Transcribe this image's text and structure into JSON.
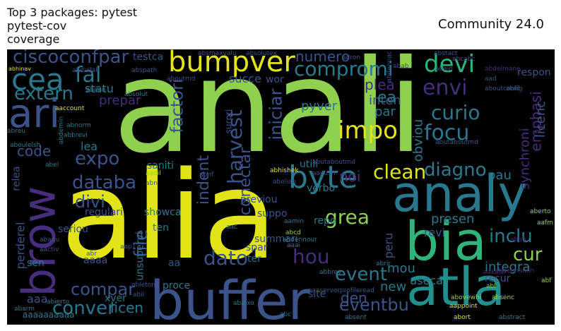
{
  "title_left": "Top 3 packages: pytest\npytest-cov\ncoverage",
  "title_right": "Community 24.0",
  "cloud": {
    "background": "#000000",
    "palette": {
      "lime": "#8fd14f",
      "yellow": "#e2e418",
      "teal": "#21908d",
      "blue": "#3b528b",
      "purple": "#472d7b",
      "green": "#2fb47c",
      "cyan": "#2a788e",
      "dark": "#440154"
    },
    "words": [
      {
        "text": "anali",
        "color": "#8fd14f"
      },
      {
        "text": "alia",
        "color": "#e2e418"
      },
      {
        "text": "buffer",
        "color": "#3b528b"
      },
      {
        "text": "brow",
        "color": "#472d7b"
      },
      {
        "text": "analy",
        "color": "#2a788e"
      },
      {
        "text": "bia",
        "color": "#2fb47c"
      },
      {
        "text": "atla",
        "color": "#21908d"
      },
      {
        "text": "bumpver",
        "color": "#e2e418"
      },
      {
        "text": "ari",
        "color": "#3b528b"
      },
      {
        "text": "cea",
        "color": "#2a788e"
      },
      {
        "text": "ciscoconfpar",
        "color": "#3b528b"
      },
      {
        "text": "byte",
        "color": "#2a788e"
      },
      {
        "text": "compromi",
        "color": "#2a788e"
      },
      {
        "text": "devi",
        "color": "#2fb47c"
      },
      {
        "text": "fal",
        "color": "#2a788e"
      },
      {
        "text": "extern",
        "color": "#2a788e"
      },
      {
        "text": "envi",
        "color": "#472d7b"
      },
      {
        "text": "curio",
        "color": "#2a788e"
      },
      {
        "text": "focu",
        "color": "#2a788e"
      },
      {
        "text": "impo",
        "color": "#e2e418"
      },
      {
        "text": "factori",
        "color": "#3b528b"
      },
      {
        "text": "harvest",
        "color": "#3b528b"
      },
      {
        "text": "iniciar",
        "color": "#3b528b"
      },
      {
        "text": "clean",
        "color": "#e2e418"
      },
      {
        "text": "diagno",
        "color": "#2a788e"
      },
      {
        "text": "databa",
        "color": "#3b528b"
      },
      {
        "text": "expo",
        "color": "#3b528b"
      },
      {
        "text": "code",
        "color": "#3b528b"
      },
      {
        "text": "divi",
        "color": "#3b528b"
      },
      {
        "text": "indent",
        "color": "#3b528b"
      },
      {
        "text": "conectar",
        "color": "#3b528b"
      },
      {
        "text": "grea",
        "color": "#8fd14f"
      },
      {
        "text": "dato",
        "color": "#3b528b"
      },
      {
        "text": "hou",
        "color": "#472d7b"
      },
      {
        "text": "file",
        "color": "#3b528b"
      },
      {
        "text": "compar",
        "color": "#3b528b"
      },
      {
        "text": "conver",
        "color": "#2a788e"
      },
      {
        "text": "licen",
        "color": "#2a788e"
      },
      {
        "text": "event",
        "color": "#2a788e"
      },
      {
        "text": "eventbu",
        "color": "#3b528b"
      },
      {
        "text": "inclu",
        "color": "#2a788e"
      },
      {
        "text": "cur",
        "color": "#8fd14f"
      },
      {
        "text": "integra",
        "color": "#2a788e"
      },
      {
        "text": "den",
        "color": "#3b528b"
      },
      {
        "text": "new",
        "color": "#2a788e"
      },
      {
        "text": "mou",
        "color": "#2a788e"
      },
      {
        "text": "presen",
        "color": "#2a788e"
      },
      {
        "text": "revi",
        "color": "#3b528b"
      },
      {
        "text": "pau",
        "color": "#2a788e"
      },
      {
        "text": "noi",
        "color": "#472d7b"
      },
      {
        "text": "emphasi",
        "color": "#472d7b"
      },
      {
        "text": "synchroni",
        "color": "#472d7b"
      },
      {
        "text": "licenc",
        "color": "#3b528b"
      },
      {
        "text": "inten",
        "color": "#3b528b"
      },
      {
        "text": "ea",
        "color": "#2a788e"
      },
      {
        "text": "plea",
        "color": "#472d7b"
      },
      {
        "text": "numero",
        "color": "#3b528b"
      },
      {
        "text": "pyver",
        "color": "#2a788e"
      },
      {
        "text": "obviou",
        "color": "#2a788e"
      },
      {
        "text": "par",
        "color": "#2a788e"
      },
      {
        "text": "prepar",
        "color": "#472d7b"
      },
      {
        "text": "statu",
        "color": "#2a788e"
      },
      {
        "text": "succe",
        "color": "#3b528b"
      },
      {
        "text": "testca",
        "color": "#3b528b"
      },
      {
        "text": "wor",
        "color": "#3b528b"
      },
      {
        "text": "respon",
        "color": "#3b528b"
      },
      {
        "text": "lea",
        "color": "#2a788e"
      },
      {
        "text": "saniti",
        "color": "#2a788e"
      },
      {
        "text": "utili",
        "color": "#2a788e"
      },
      {
        "text": "regulari",
        "color": "#3b528b"
      },
      {
        "text": "showca",
        "color": "#2a788e"
      },
      {
        "text": "verbo",
        "color": "#2a788e"
      },
      {
        "text": "previou",
        "color": "#3b528b"
      },
      {
        "text": "suppo",
        "color": "#3b528b"
      },
      {
        "text": "repo",
        "color": "#2a788e"
      },
      {
        "text": "seriou",
        "color": "#3b528b"
      },
      {
        "text": "ten",
        "color": "#2a788e"
      },
      {
        "text": "spar",
        "color": "#3b528b"
      },
      {
        "text": "ter",
        "color": "#2a788e"
      },
      {
        "text": "summari",
        "color": "#3b528b"
      },
      {
        "text": "perderel",
        "color": "#3b528b"
      },
      {
        "text": "relea",
        "color": "#3b528b"
      },
      {
        "text": "unsupervi",
        "color": "#2a788e"
      },
      {
        "text": "sen",
        "color": "#2a788e"
      },
      {
        "text": "aa",
        "color": "#3b528b"
      },
      {
        "text": "aaaa",
        "color": "#3b528b"
      },
      {
        "text": "proce",
        "color": "#2a788e"
      },
      {
        "text": "site",
        "color": "#3b528b"
      },
      {
        "text": "useca",
        "color": "#2a788e"
      },
      {
        "text": "recur",
        "color": "#3b528b"
      },
      {
        "text": "peru",
        "color": "#3b528b"
      },
      {
        "text": "xver",
        "color": "#2a788e"
      },
      {
        "text": "aaa",
        "color": "#3b528b"
      },
      {
        "text": "aaaaaaaaaa",
        "color": "#2a788e"
      },
      {
        "text": "surpri",
        "color": "#3b528b"
      },
      {
        "text": "abhinav",
        "color": "#e2e418"
      },
      {
        "text": "aaaserverprofileread",
        "color": "#3b528b"
      },
      {
        "text": "abhishek",
        "color": "#e2e418"
      },
      {
        "text": "abdennac",
        "color": "#3b528b"
      },
      {
        "text": "abcd",
        "color": "#8fd14f"
      },
      {
        "text": "abort",
        "color": "#e2e418"
      },
      {
        "text": "abstract",
        "color": "#2a788e"
      },
      {
        "text": "abovewhi",
        "color": "#8fd14f"
      },
      {
        "text": "aappoint",
        "color": "#e2e418"
      },
      {
        "text": "abl",
        "color": "#8fd14f"
      },
      {
        "text": "absenc",
        "color": "#8fd14f"
      },
      {
        "text": "abf",
        "color": "#8fd14f"
      },
      {
        "text": "aafm",
        "color": "#8fd14f"
      },
      {
        "text": "aberto",
        "color": "#8fd14f"
      },
      {
        "text": "abrir",
        "color": "#2a788e"
      },
      {
        "text": "abbrev",
        "color": "#2a788e"
      },
      {
        "text": "aaai",
        "color": "#2a788e"
      },
      {
        "text": "abc",
        "color": "#2a788e"
      },
      {
        "text": "abaixo",
        "color": "#2a788e"
      },
      {
        "text": "absent",
        "color": "#2a788e"
      },
      {
        "text": "abierto",
        "color": "#2a788e"
      },
      {
        "text": "abarm",
        "color": "#2a788e"
      },
      {
        "text": "abil",
        "color": "#3b528b"
      },
      {
        "text": "ableton",
        "color": "#3b528b"
      },
      {
        "text": "abr",
        "color": "#3b528b"
      },
      {
        "text": "abaqu",
        "color": "#3b528b"
      },
      {
        "text": "aactiv",
        "color": "#3b528b"
      },
      {
        "text": "aap1",
        "color": "#3b528b"
      },
      {
        "text": "aac",
        "color": "#2a788e"
      },
      {
        "text": "aamin",
        "color": "#2a788e"
      },
      {
        "text": "abdennour",
        "color": "#2a788e"
      },
      {
        "text": "aadil",
        "color": "#8fd14f"
      },
      {
        "text": "abn",
        "color": "#3b528b"
      },
      {
        "text": "abnf",
        "color": "#3b528b"
      },
      {
        "text": "abutaboutmd",
        "color": "#3b528b"
      },
      {
        "text": "abelian",
        "color": "#3b528b"
      },
      {
        "text": "aayush",
        "color": "#3b528b"
      },
      {
        "text": "abel",
        "color": "#2a788e"
      },
      {
        "text": "aboulelsh",
        "color": "#2a788e"
      },
      {
        "text": "abdemin",
        "color": "#2a788e"
      },
      {
        "text": "abbrevi",
        "color": "#2a788e"
      },
      {
        "text": "abnorm",
        "color": "#2a788e"
      },
      {
        "text": "aaccount",
        "color": "#e2e418"
      },
      {
        "text": "abreu",
        "color": "#2a788e"
      },
      {
        "text": "abilen",
        "color": "#2a788e"
      },
      {
        "text": "absolut",
        "color": "#2a788e"
      },
      {
        "text": "abspath",
        "color": "#3b528b"
      },
      {
        "text": "aboutmd",
        "color": "#3b528b"
      },
      {
        "text": "abdullah",
        "color": "#3b528b"
      },
      {
        "text": "absmaxvalu",
        "color": "#3b528b"
      },
      {
        "text": "absolutex",
        "color": "#3b528b"
      },
      {
        "text": "abstact",
        "color": "#3b528b"
      },
      {
        "text": "adron",
        "color": "#3b528b"
      },
      {
        "text": "abab",
        "color": "#3b528b"
      },
      {
        "text": "abajo",
        "color": "#3b528b"
      },
      {
        "text": "aad",
        "color": "#3b528b"
      },
      {
        "text": "aboutconfig",
        "color": "#3b528b"
      },
      {
        "text": "abid",
        "color": "#3b528b"
      },
      {
        "text": "abdelmane",
        "color": "#472d7b"
      },
      {
        "text": "abbb",
        "color": "#472d7b"
      },
      {
        "text": "aakash",
        "color": "#472d7b"
      },
      {
        "text": "abdelmanan",
        "color": "#472d7b"
      },
      {
        "text": "abcabc",
        "color": "#3b528b"
      },
      {
        "text": "abutaboutmd",
        "color": "#3b528b"
      }
    ]
  }
}
